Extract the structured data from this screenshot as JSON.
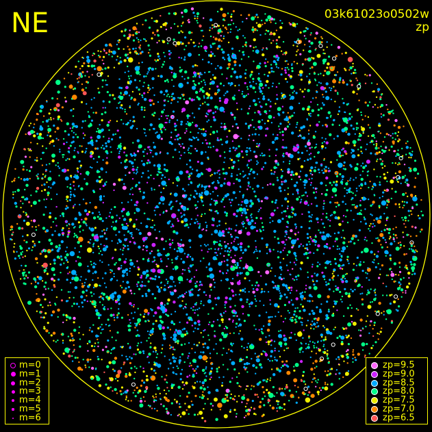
{
  "corner_label": "NE",
  "image_id": "03k61023o0502w",
  "metric": "zp",
  "colors": {
    "text": "#ffff00",
    "border_circle": "#ffff00",
    "background": "#000000"
  },
  "chart_data": {
    "type": "scatter",
    "title": "",
    "magnitude_legend": [
      {
        "label": "m=0",
        "style": "open ring"
      },
      {
        "label": "m=1",
        "style": "filled"
      },
      {
        "label": "m=2",
        "style": "filled"
      },
      {
        "label": "m=3",
        "style": "filled"
      },
      {
        "label": "m=4",
        "style": "filled"
      },
      {
        "label": "m=5",
        "style": "filled"
      },
      {
        "label": "m=6",
        "style": "filled"
      }
    ],
    "zp_legend": [
      {
        "label": "zp=9.5",
        "zp": 9.5,
        "color": "#ff66ff"
      },
      {
        "label": "zp=9.0",
        "zp": 9.0,
        "color": "#cc22ff"
      },
      {
        "label": "zp=8.5",
        "zp": 8.5,
        "color": "#00aaff"
      },
      {
        "label": "zp=8.0",
        "zp": 8.0,
        "color": "#00ff88"
      },
      {
        "label": "zp=7.5",
        "zp": 7.5,
        "color": "#eeee00"
      },
      {
        "label": "zp=7.0",
        "zp": 7.0,
        "color": "#ff8800"
      },
      {
        "label": "zp=6.5",
        "zp": 6.5,
        "color": "#ff5555"
      }
    ],
    "field_color_regions": [
      {
        "region": "center",
        "dominant_zp": [
          8.5,
          9.0
        ]
      },
      {
        "region": "edge",
        "dominant_zp": [
          7.0,
          8.0
        ]
      }
    ],
    "legend_placement": [
      "bottom-left",
      "bottom-right"
    ]
  }
}
